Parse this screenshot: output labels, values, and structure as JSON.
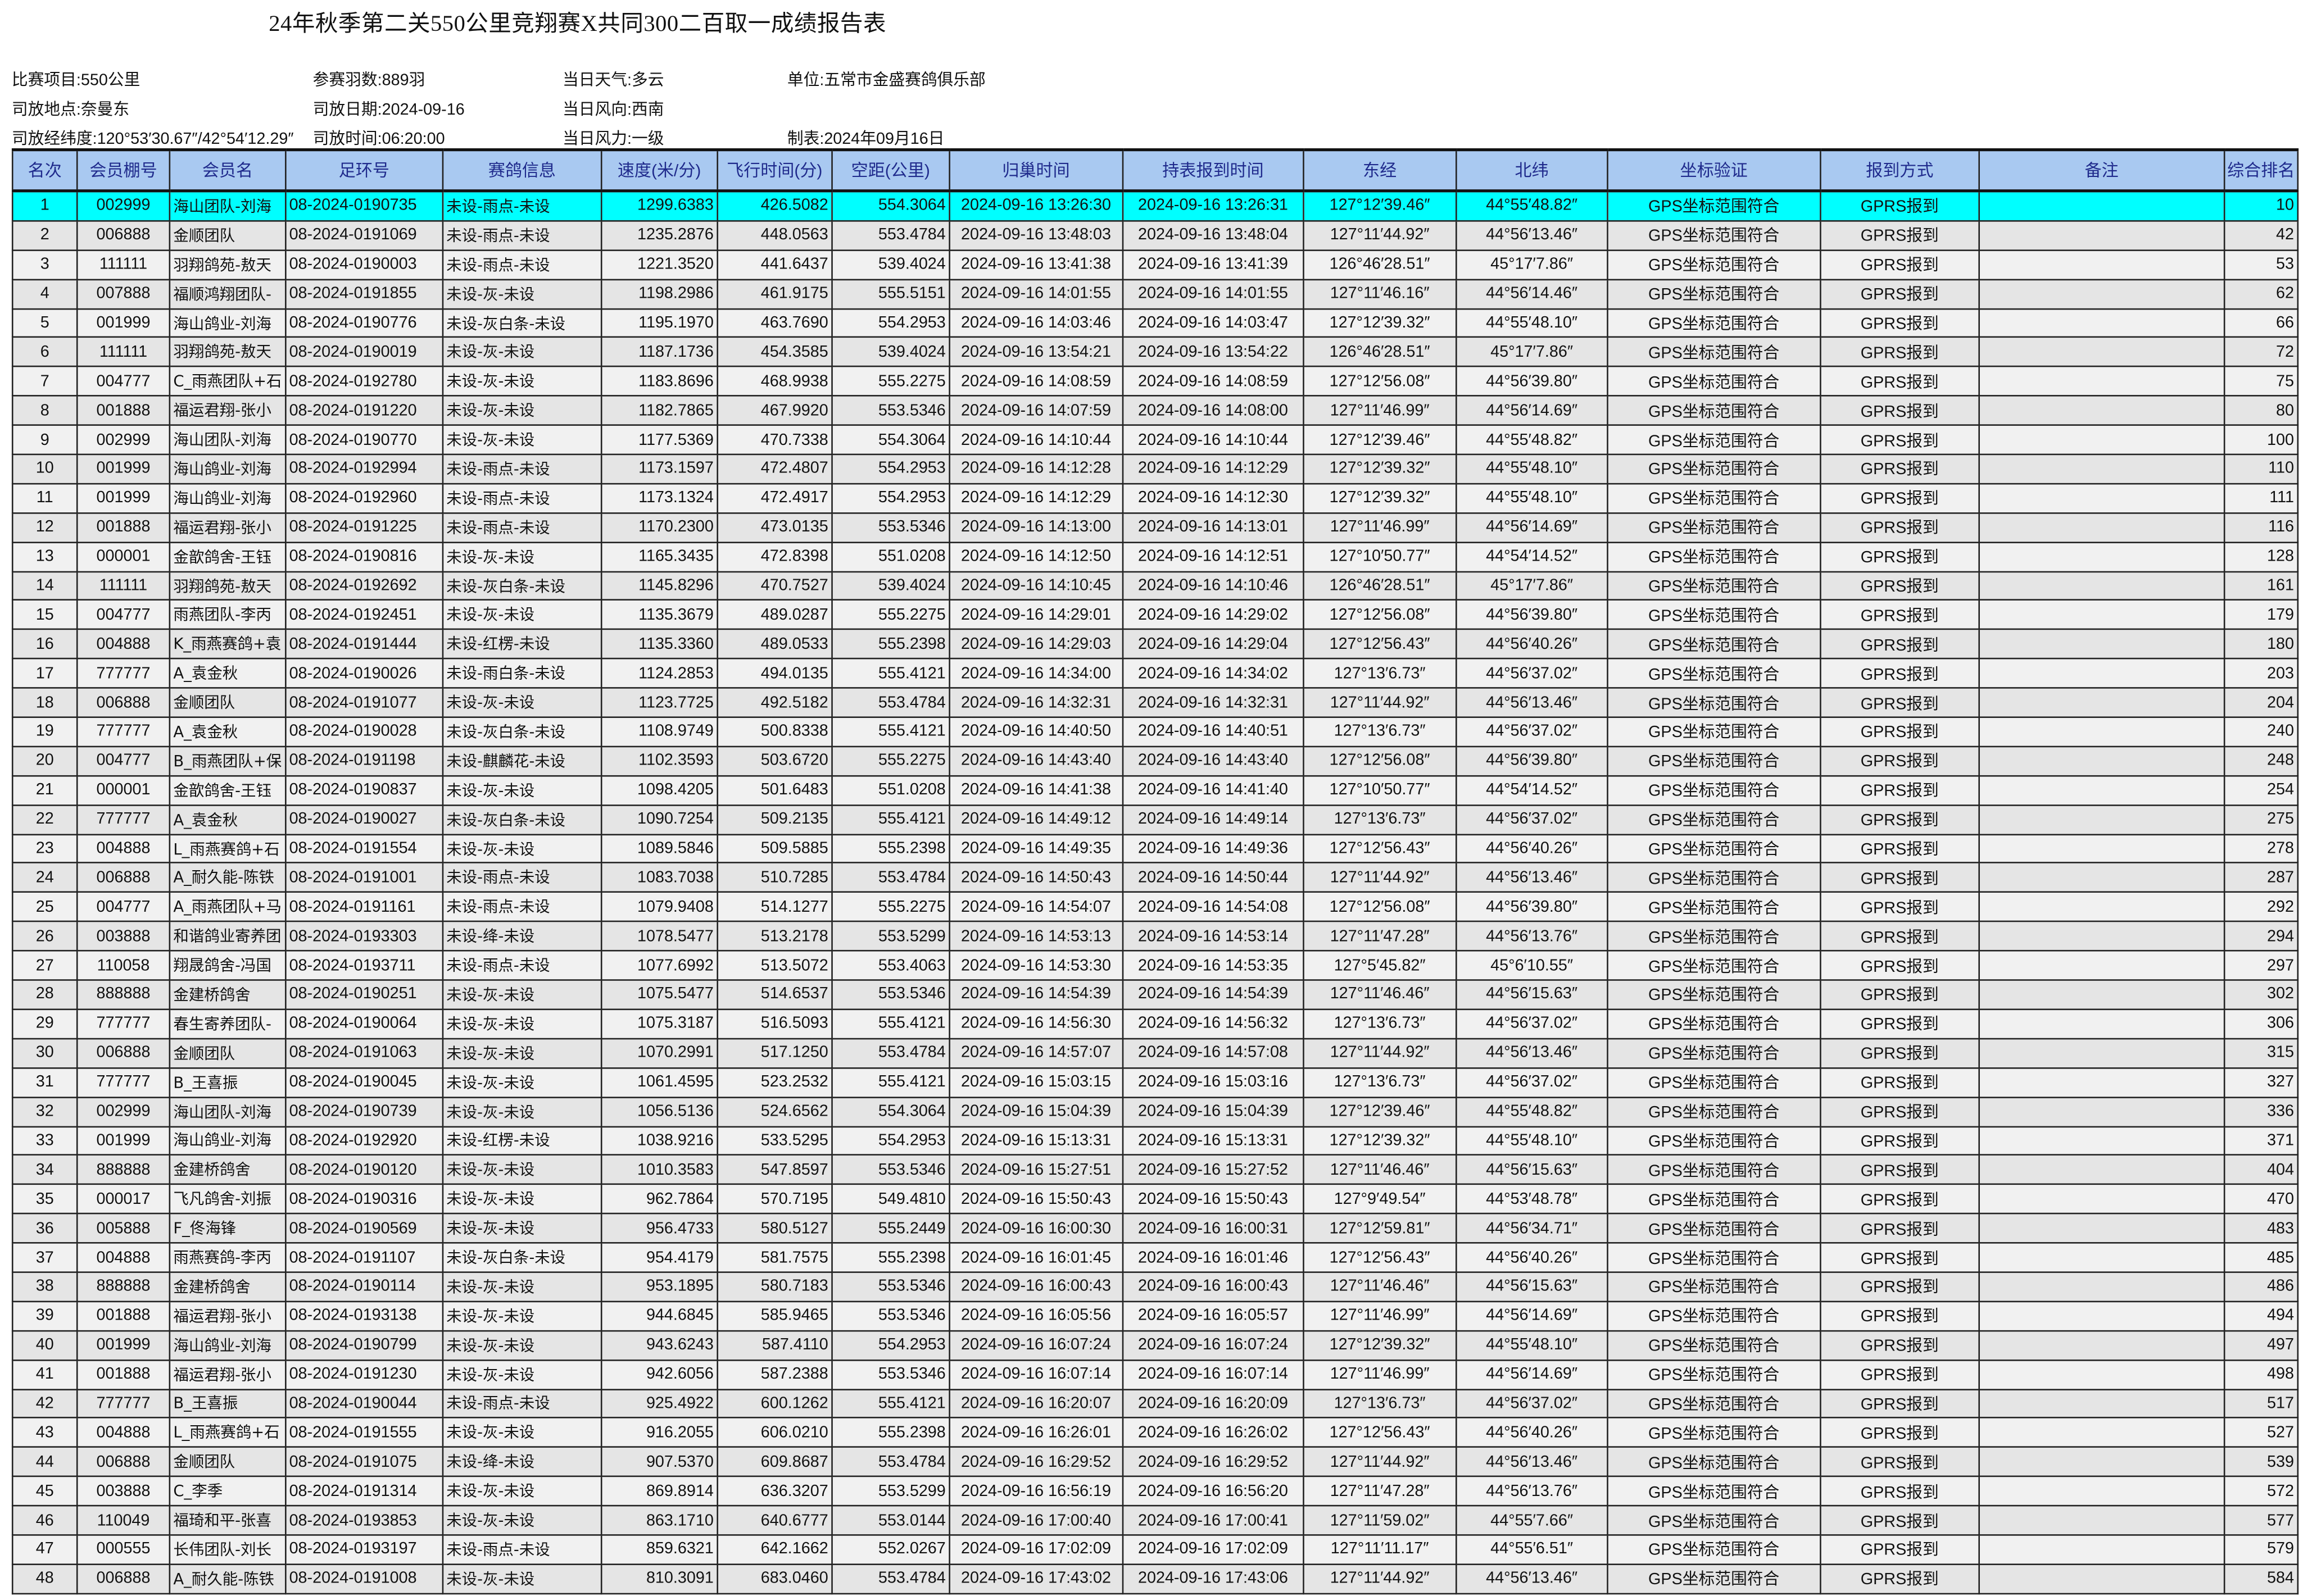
{
  "title": "24年秋季第二关550公里竞翔赛X共同300二百取一成绩报告表",
  "info": {
    "race_item": "比赛项目:550公里",
    "entries": "参赛羽数:889羽",
    "weather": "当日天气:多云",
    "unit": "单位:五常市金盛赛鸽俱乐部",
    "release_place": "司放地点:奈曼东",
    "release_date": "司放日期:2024-09-16",
    "wind_dir": "当日风向:西南",
    "release_coords": "司放经纬度:120°53′30.67″/42°54′12.29″",
    "release_time": "司放时间:06:20:00",
    "wind_force": "当日风力:一级",
    "made_date": "制表:2024年09月16日"
  },
  "colors": {
    "header_bg": "#a9c9f1",
    "header_text": "#1f2a8c",
    "highlight_row": "#00ffff",
    "row_odd": "#f1f1f1",
    "row_even": "#e5e5e5"
  },
  "columns": [
    "名次",
    "会员棚号",
    "会员名",
    "足环号",
    "赛鸽信息",
    "速度(米/分)",
    "飞行时间(分)",
    "空距(公里)",
    "归巢时间",
    "持表报到时间",
    "东经",
    "北纬",
    "坐标验证",
    "报到方式",
    "备注",
    "综合排名"
  ],
  "rows": [
    [
      "1",
      "002999",
      "海山团队-刘海",
      "08-2024-0190735",
      "未设-雨点-未设",
      "1299.6383",
      "426.5082",
      "554.3064",
      "2024-09-16 13:26:30",
      "2024-09-16 13:26:31",
      "127°12′39.46″",
      "44°55′48.82″",
      "GPS坐标范围符合",
      "GPRS报到",
      "",
      "10"
    ],
    [
      "2",
      "006888",
      "金顺团队",
      "08-2024-0191069",
      "未设-雨点-未设",
      "1235.2876",
      "448.0563",
      "553.4784",
      "2024-09-16 13:48:03",
      "2024-09-16 13:48:04",
      "127°11′44.92″",
      "44°56′13.46″",
      "GPS坐标范围符合",
      "GPRS报到",
      "",
      "42"
    ],
    [
      "3",
      "111111",
      "羽翔鸽苑-敖天",
      "08-2024-0190003",
      "未设-雨点-未设",
      "1221.3520",
      "441.6437",
      "539.4024",
      "2024-09-16 13:41:38",
      "2024-09-16 13:41:39",
      "126°46′28.51″",
      "45°17′7.86″",
      "GPS坐标范围符合",
      "GPRS报到",
      "",
      "53"
    ],
    [
      "4",
      "007888",
      "福顺鸿翔团队-",
      "08-2024-0191855",
      "未设-灰-未设",
      "1198.2986",
      "461.9175",
      "555.5151",
      "2024-09-16 14:01:55",
      "2024-09-16 14:01:55",
      "127°11′46.16″",
      "44°56′14.46″",
      "GPS坐标范围符合",
      "GPRS报到",
      "",
      "62"
    ],
    [
      "5",
      "001999",
      "海山鸽业-刘海",
      "08-2024-0190776",
      "未设-灰白条-未设",
      "1195.1970",
      "463.7690",
      "554.2953",
      "2024-09-16 14:03:46",
      "2024-09-16 14:03:47",
      "127°12′39.32″",
      "44°55′48.10″",
      "GPS坐标范围符合",
      "GPRS报到",
      "",
      "66"
    ],
    [
      "6",
      "111111",
      "羽翔鸽苑-敖天",
      "08-2024-0190019",
      "未设-灰-未设",
      "1187.1736",
      "454.3585",
      "539.4024",
      "2024-09-16 13:54:21",
      "2024-09-16 13:54:22",
      "126°46′28.51″",
      "45°17′7.86″",
      "GPS坐标范围符合",
      "GPRS报到",
      "",
      "72"
    ],
    [
      "7",
      "004777",
      "C_雨燕团队+石",
      "08-2024-0192780",
      "未设-灰-未设",
      "1183.8696",
      "468.9938",
      "555.2275",
      "2024-09-16 14:08:59",
      "2024-09-16 14:08:59",
      "127°12′56.08″",
      "44°56′39.80″",
      "GPS坐标范围符合",
      "GPRS报到",
      "",
      "75"
    ],
    [
      "8",
      "001888",
      "福运君翔-张小",
      "08-2024-0191220",
      "未设-灰-未设",
      "1182.7865",
      "467.9920",
      "553.5346",
      "2024-09-16 14:07:59",
      "2024-09-16 14:08:00",
      "127°11′46.99″",
      "44°56′14.69″",
      "GPS坐标范围符合",
      "GPRS报到",
      "",
      "80"
    ],
    [
      "9",
      "002999",
      "海山团队-刘海",
      "08-2024-0190770",
      "未设-灰-未设",
      "1177.5369",
      "470.7338",
      "554.3064",
      "2024-09-16 14:10:44",
      "2024-09-16 14:10:44",
      "127°12′39.46″",
      "44°55′48.82″",
      "GPS坐标范围符合",
      "GPRS报到",
      "",
      "100"
    ],
    [
      "10",
      "001999",
      "海山鸽业-刘海",
      "08-2024-0192994",
      "未设-雨点-未设",
      "1173.1597",
      "472.4807",
      "554.2953",
      "2024-09-16 14:12:28",
      "2024-09-16 14:12:29",
      "127°12′39.32″",
      "44°55′48.10″",
      "GPS坐标范围符合",
      "GPRS报到",
      "",
      "110"
    ],
    [
      "11",
      "001999",
      "海山鸽业-刘海",
      "08-2024-0192960",
      "未设-雨点-未设",
      "1173.1324",
      "472.4917",
      "554.2953",
      "2024-09-16 14:12:29",
      "2024-09-16 14:12:30",
      "127°12′39.32″",
      "44°55′48.10″",
      "GPS坐标范围符合",
      "GPRS报到",
      "",
      "111"
    ],
    [
      "12",
      "001888",
      "福运君翔-张小",
      "08-2024-0191225",
      "未设-雨点-未设",
      "1170.2300",
      "473.0135",
      "553.5346",
      "2024-09-16 14:13:00",
      "2024-09-16 14:13:01",
      "127°11′46.99″",
      "44°56′14.69″",
      "GPS坐标范围符合",
      "GPRS报到",
      "",
      "116"
    ],
    [
      "13",
      "000001",
      "金歆鸽舍-王钰",
      "08-2024-0190816",
      "未设-灰-未设",
      "1165.3435",
      "472.8398",
      "551.0208",
      "2024-09-16 14:12:50",
      "2024-09-16 14:12:51",
      "127°10′50.77″",
      "44°54′14.52″",
      "GPS坐标范围符合",
      "GPRS报到",
      "",
      "128"
    ],
    [
      "14",
      "111111",
      "羽翔鸽苑-敖天",
      "08-2024-0192692",
      "未设-灰白条-未设",
      "1145.8296",
      "470.7527",
      "539.4024",
      "2024-09-16 14:10:45",
      "2024-09-16 14:10:46",
      "126°46′28.51″",
      "45°17′7.86″",
      "GPS坐标范围符合",
      "GPRS报到",
      "",
      "161"
    ],
    [
      "15",
      "004777",
      "雨燕团队-李丙",
      "08-2024-0192451",
      "未设-灰-未设",
      "1135.3679",
      "489.0287",
      "555.2275",
      "2024-09-16 14:29:01",
      "2024-09-16 14:29:02",
      "127°12′56.08″",
      "44°56′39.80″",
      "GPS坐标范围符合",
      "GPRS报到",
      "",
      "179"
    ],
    [
      "16",
      "004888",
      "K_雨燕赛鸽+袁",
      "08-2024-0191444",
      "未设-红楞-未设",
      "1135.3360",
      "489.0533",
      "555.2398",
      "2024-09-16 14:29:03",
      "2024-09-16 14:29:04",
      "127°12′56.43″",
      "44°56′40.26″",
      "GPS坐标范围符合",
      "GPRS报到",
      "",
      "180"
    ],
    [
      "17",
      "777777",
      "A_袁金秋",
      "08-2024-0190026",
      "未设-雨白条-未设",
      "1124.2853",
      "494.0135",
      "555.4121",
      "2024-09-16 14:34:00",
      "2024-09-16 14:34:02",
      "127°13′6.73″",
      "44°56′37.02″",
      "GPS坐标范围符合",
      "GPRS报到",
      "",
      "203"
    ],
    [
      "18",
      "006888",
      "金顺团队",
      "08-2024-0191077",
      "未设-灰-未设",
      "1123.7725",
      "492.5182",
      "553.4784",
      "2024-09-16 14:32:31",
      "2024-09-16 14:32:31",
      "127°11′44.92″",
      "44°56′13.46″",
      "GPS坐标范围符合",
      "GPRS报到",
      "",
      "204"
    ],
    [
      "19",
      "777777",
      "A_袁金秋",
      "08-2024-0190028",
      "未设-灰白条-未设",
      "1108.9749",
      "500.8338",
      "555.4121",
      "2024-09-16 14:40:50",
      "2024-09-16 14:40:51",
      "127°13′6.73″",
      "44°56′37.02″",
      "GPS坐标范围符合",
      "GPRS报到",
      "",
      "240"
    ],
    [
      "20",
      "004777",
      "B_雨燕团队+保",
      "08-2024-0191198",
      "未设-麒麟花-未设",
      "1102.3593",
      "503.6720",
      "555.2275",
      "2024-09-16 14:43:40",
      "2024-09-16 14:43:40",
      "127°12′56.08″",
      "44°56′39.80″",
      "GPS坐标范围符合",
      "GPRS报到",
      "",
      "248"
    ],
    [
      "21",
      "000001",
      "金歆鸽舍-王钰",
      "08-2024-0190837",
      "未设-灰-未设",
      "1098.4205",
      "501.6483",
      "551.0208",
      "2024-09-16 14:41:38",
      "2024-09-16 14:41:40",
      "127°10′50.77″",
      "44°54′14.52″",
      "GPS坐标范围符合",
      "GPRS报到",
      "",
      "254"
    ],
    [
      "22",
      "777777",
      "A_袁金秋",
      "08-2024-0190027",
      "未设-灰白条-未设",
      "1090.7254",
      "509.2135",
      "555.4121",
      "2024-09-16 14:49:12",
      "2024-09-16 14:49:14",
      "127°13′6.73″",
      "44°56′37.02″",
      "GPS坐标范围符合",
      "GPRS报到",
      "",
      "275"
    ],
    [
      "23",
      "004888",
      "L_雨燕赛鸽+石",
      "08-2024-0191554",
      "未设-灰-未设",
      "1089.5846",
      "509.5885",
      "555.2398",
      "2024-09-16 14:49:35",
      "2024-09-16 14:49:36",
      "127°12′56.43″",
      "44°56′40.26″",
      "GPS坐标范围符合",
      "GPRS报到",
      "",
      "278"
    ],
    [
      "24",
      "006888",
      "A_耐久能-陈铁",
      "08-2024-0191001",
      "未设-雨点-未设",
      "1083.7038",
      "510.7285",
      "553.4784",
      "2024-09-16 14:50:43",
      "2024-09-16 14:50:44",
      "127°11′44.92″",
      "44°56′13.46″",
      "GPS坐标范围符合",
      "GPRS报到",
      "",
      "287"
    ],
    [
      "25",
      "004777",
      "A_雨燕团队+马",
      "08-2024-0191161",
      "未设-雨点-未设",
      "1079.9408",
      "514.1277",
      "555.2275",
      "2024-09-16 14:54:07",
      "2024-09-16 14:54:08",
      "127°12′56.08″",
      "44°56′39.80″",
      "GPS坐标范围符合",
      "GPRS报到",
      "",
      "292"
    ],
    [
      "26",
      "003888",
      "和谐鸽业寄养团",
      "08-2024-0193303",
      "未设-绛-未设",
      "1078.5477",
      "513.2178",
      "553.5299",
      "2024-09-16 14:53:13",
      "2024-09-16 14:53:14",
      "127°11′47.28″",
      "44°56′13.76″",
      "GPS坐标范围符合",
      "GPRS报到",
      "",
      "294"
    ],
    [
      "27",
      "110058",
      "翔晟鸽舍-冯国",
      "08-2024-0193711",
      "未设-雨点-未设",
      "1077.6992",
      "513.5072",
      "553.4063",
      "2024-09-16 14:53:30",
      "2024-09-16 14:53:35",
      "127°5′45.82″",
      "45°6′10.55″",
      "GPS坐标范围符合",
      "GPRS报到",
      "",
      "297"
    ],
    [
      "28",
      "888888",
      "金建桥鸽舍",
      "08-2024-0190251",
      "未设-灰-未设",
      "1075.5477",
      "514.6537",
      "553.5346",
      "2024-09-16 14:54:39",
      "2024-09-16 14:54:39",
      "127°11′46.46″",
      "44°56′15.63″",
      "GPS坐标范围符合",
      "GPRS报到",
      "",
      "302"
    ],
    [
      "29",
      "777777",
      "春生寄养团队-",
      "08-2024-0190064",
      "未设-灰-未设",
      "1075.3187",
      "516.5093",
      "555.4121",
      "2024-09-16 14:56:30",
      "2024-09-16 14:56:32",
      "127°13′6.73″",
      "44°56′37.02″",
      "GPS坐标范围符合",
      "GPRS报到",
      "",
      "306"
    ],
    [
      "30",
      "006888",
      "金顺团队",
      "08-2024-0191063",
      "未设-灰-未设",
      "1070.2991",
      "517.1250",
      "553.4784",
      "2024-09-16 14:57:07",
      "2024-09-16 14:57:08",
      "127°11′44.92″",
      "44°56′13.46″",
      "GPS坐标范围符合",
      "GPRS报到",
      "",
      "315"
    ],
    [
      "31",
      "777777",
      "B_王喜振",
      "08-2024-0190045",
      "未设-灰-未设",
      "1061.4595",
      "523.2532",
      "555.4121",
      "2024-09-16 15:03:15",
      "2024-09-16 15:03:16",
      "127°13′6.73″",
      "44°56′37.02″",
      "GPS坐标范围符合",
      "GPRS报到",
      "",
      "327"
    ],
    [
      "32",
      "002999",
      "海山团队-刘海",
      "08-2024-0190739",
      "未设-灰-未设",
      "1056.5136",
      "524.6562",
      "554.3064",
      "2024-09-16 15:04:39",
      "2024-09-16 15:04:39",
      "127°12′39.46″",
      "44°55′48.82″",
      "GPS坐标范围符合",
      "GPRS报到",
      "",
      "336"
    ],
    [
      "33",
      "001999",
      "海山鸽业-刘海",
      "08-2024-0192920",
      "未设-红楞-未设",
      "1038.9216",
      "533.5295",
      "554.2953",
      "2024-09-16 15:13:31",
      "2024-09-16 15:13:31",
      "127°12′39.32″",
      "44°55′48.10″",
      "GPS坐标范围符合",
      "GPRS报到",
      "",
      "371"
    ],
    [
      "34",
      "888888",
      "金建桥鸽舍",
      "08-2024-0190120",
      "未设-灰-未设",
      "1010.3583",
      "547.8597",
      "553.5346",
      "2024-09-16 15:27:51",
      "2024-09-16 15:27:52",
      "127°11′46.46″",
      "44°56′15.63″",
      "GPS坐标范围符合",
      "GPRS报到",
      "",
      "404"
    ],
    [
      "35",
      "000017",
      "飞凡鸽舍-刘振",
      "08-2024-0190316",
      "未设-灰-未设",
      "962.7864",
      "570.7195",
      "549.4810",
      "2024-09-16 15:50:43",
      "2024-09-16 15:50:43",
      "127°9′49.54″",
      "44°53′48.78″",
      "GPS坐标范围符合",
      "GPRS报到",
      "",
      "470"
    ],
    [
      "36",
      "005888",
      "F_佟海锋",
      "08-2024-0190569",
      "未设-灰-未设",
      "956.4733",
      "580.5127",
      "555.2449",
      "2024-09-16 16:00:30",
      "2024-09-16 16:00:31",
      "127°12′59.81″",
      "44°56′34.71″",
      "GPS坐标范围符合",
      "GPRS报到",
      "",
      "483"
    ],
    [
      "37",
      "004888",
      "雨燕赛鸽-李丙",
      "08-2024-0191107",
      "未设-灰白条-未设",
      "954.4179",
      "581.7575",
      "555.2398",
      "2024-09-16 16:01:45",
      "2024-09-16 16:01:46",
      "127°12′56.43″",
      "44°56′40.26″",
      "GPS坐标范围符合",
      "GPRS报到",
      "",
      "485"
    ],
    [
      "38",
      "888888",
      "金建桥鸽舍",
      "08-2024-0190114",
      "未设-灰-未设",
      "953.1895",
      "580.7183",
      "553.5346",
      "2024-09-16 16:00:43",
      "2024-09-16 16:00:43",
      "127°11′46.46″",
      "44°56′15.63″",
      "GPS坐标范围符合",
      "GPRS报到",
      "",
      "486"
    ],
    [
      "39",
      "001888",
      "福运君翔-张小",
      "08-2024-0193138",
      "未设-灰-未设",
      "944.6845",
      "585.9465",
      "553.5346",
      "2024-09-16 16:05:56",
      "2024-09-16 16:05:57",
      "127°11′46.99″",
      "44°56′14.69″",
      "GPS坐标范围符合",
      "GPRS报到",
      "",
      "494"
    ],
    [
      "40",
      "001999",
      "海山鸽业-刘海",
      "08-2024-0190799",
      "未设-灰-未设",
      "943.6243",
      "587.4110",
      "554.2953",
      "2024-09-16 16:07:24",
      "2024-09-16 16:07:24",
      "127°12′39.32″",
      "44°55′48.10″",
      "GPS坐标范围符合",
      "GPRS报到",
      "",
      "497"
    ],
    [
      "41",
      "001888",
      "福运君翔-张小",
      "08-2024-0191230",
      "未设-灰-未设",
      "942.6056",
      "587.2388",
      "553.5346",
      "2024-09-16 16:07:14",
      "2024-09-16 16:07:14",
      "127°11′46.99″",
      "44°56′14.69″",
      "GPS坐标范围符合",
      "GPRS报到",
      "",
      "498"
    ],
    [
      "42",
      "777777",
      "B_王喜振",
      "08-2024-0190044",
      "未设-雨点-未设",
      "925.4922",
      "600.1262",
      "555.4121",
      "2024-09-16 16:20:07",
      "2024-09-16 16:20:09",
      "127°13′6.73″",
      "44°56′37.02″",
      "GPS坐标范围符合",
      "GPRS报到",
      "",
      "517"
    ],
    [
      "43",
      "004888",
      "L_雨燕赛鸽+石",
      "08-2024-0191555",
      "未设-灰-未设",
      "916.2055",
      "606.0210",
      "555.2398",
      "2024-09-16 16:26:01",
      "2024-09-16 16:26:02",
      "127°12′56.43″",
      "44°56′40.26″",
      "GPS坐标范围符合",
      "GPRS报到",
      "",
      "527"
    ],
    [
      "44",
      "006888",
      "金顺团队",
      "08-2024-0191075",
      "未设-绛-未设",
      "907.5370",
      "609.8687",
      "553.4784",
      "2024-09-16 16:29:52",
      "2024-09-16 16:29:52",
      "127°11′44.92″",
      "44°56′13.46″",
      "GPS坐标范围符合",
      "GPRS报到",
      "",
      "539"
    ],
    [
      "45",
      "003888",
      "C_李季",
      "08-2024-0191314",
      "未设-灰-未设",
      "869.8914",
      "636.3207",
      "553.5299",
      "2024-09-16 16:56:19",
      "2024-09-16 16:56:20",
      "127°11′47.28″",
      "44°56′13.76″",
      "GPS坐标范围符合",
      "GPRS报到",
      "",
      "572"
    ],
    [
      "46",
      "110049",
      "福琦和平-张喜",
      "08-2024-0193853",
      "未设-灰-未设",
      "863.1710",
      "640.6777",
      "553.0144",
      "2024-09-16 17:00:40",
      "2024-09-16 17:00:41",
      "127°11′59.02″",
      "44°55′7.66″",
      "GPS坐标范围符合",
      "GPRS报到",
      "",
      "577"
    ],
    [
      "47",
      "000555",
      "长伟团队-刘长",
      "08-2024-0193197",
      "未设-雨点-未设",
      "859.6321",
      "642.1662",
      "552.0267",
      "2024-09-16 17:02:09",
      "2024-09-16 17:02:09",
      "127°11′11.17″",
      "44°55′6.51″",
      "GPS坐标范围符合",
      "GPRS报到",
      "",
      "579"
    ],
    [
      "48",
      "006888",
      "A_耐久能-陈铁",
      "08-2024-0191008",
      "未设-灰-未设",
      "810.3091",
      "683.0460",
      "553.4784",
      "2024-09-16 17:43:02",
      "2024-09-16 17:43:06",
      "127°11′44.92″",
      "44°56′13.46″",
      "GPS坐标范围符合",
      "GPRS报到",
      "",
      "584"
    ]
  ]
}
